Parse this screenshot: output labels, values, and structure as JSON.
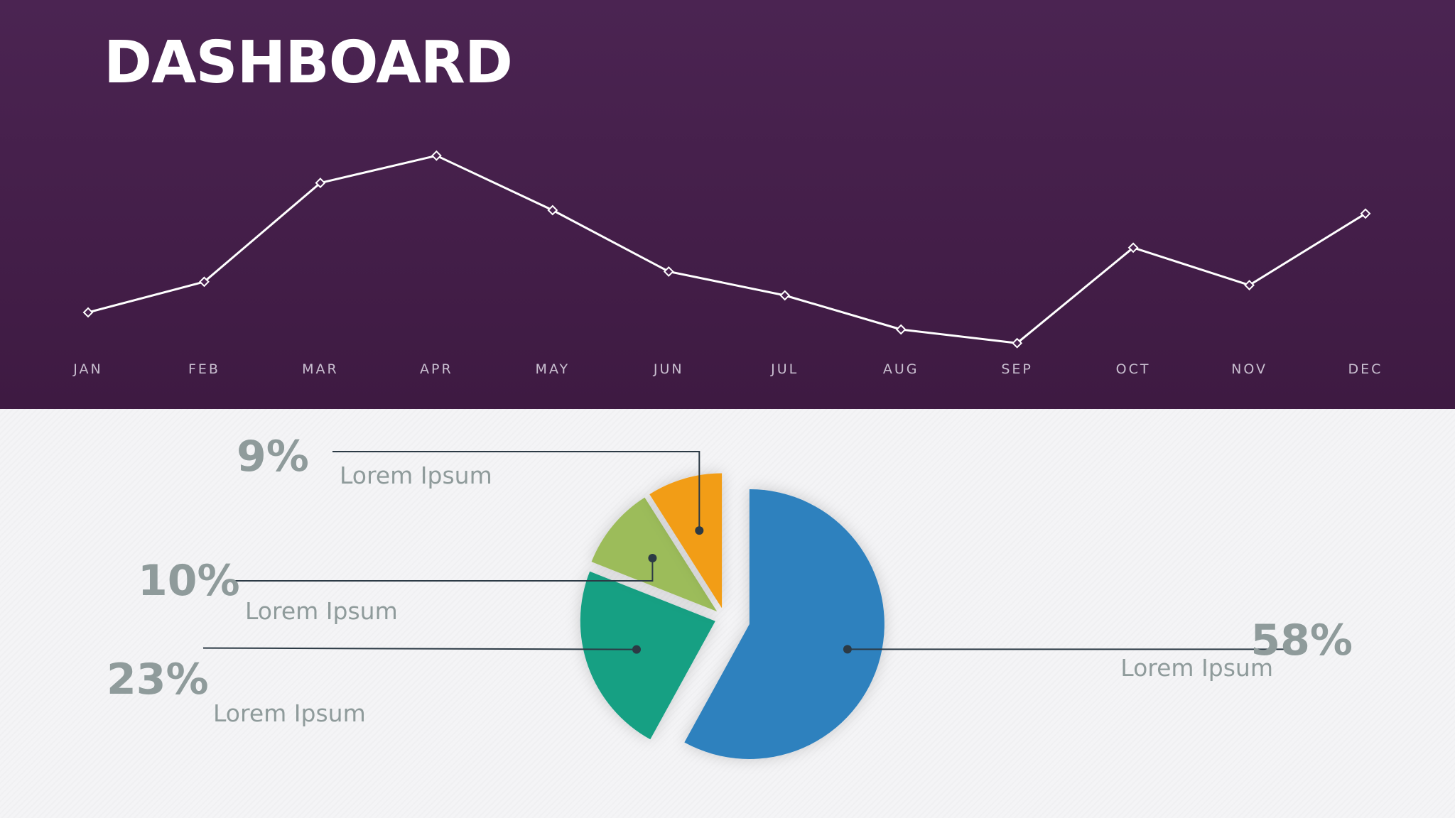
{
  "title": "DASHBOARD",
  "chart_data": [
    {
      "type": "line",
      "categories": [
        "JAN",
        "FEB",
        "MAR",
        "APR",
        "MAY",
        "JUN",
        "JUL",
        "AUG",
        "SEP",
        "OCT",
        "NOV",
        "DEC"
      ],
      "values": [
        25,
        34,
        63,
        71,
        55,
        37,
        30,
        20,
        16,
        44,
        33,
        54
      ],
      "ylim": [
        0,
        100
      ],
      "grid": false,
      "line_color": "#ffffff"
    },
    {
      "type": "pie",
      "slices": [
        {
          "percent_label": "58%",
          "value": 58,
          "label": "Lorem Ipsum",
          "color": "#2e81be"
        },
        {
          "percent_label": "23%",
          "value": 23,
          "label": "Lorem Ipsum",
          "color": "#16a083"
        },
        {
          "percent_label": "10%",
          "value": 10,
          "label": "Lorem Ipsum",
          "color": "#9cbc5a"
        },
        {
          "percent_label": "9%",
          "value": 9,
          "label": "Lorem Ipsum",
          "color": "#f29d17"
        }
      ]
    }
  ],
  "colors": {
    "header_bg": "#452049",
    "body_bg": "#f4f4f6",
    "text_gray": "#8f9b9b",
    "leader_line": "#2c3a45"
  }
}
